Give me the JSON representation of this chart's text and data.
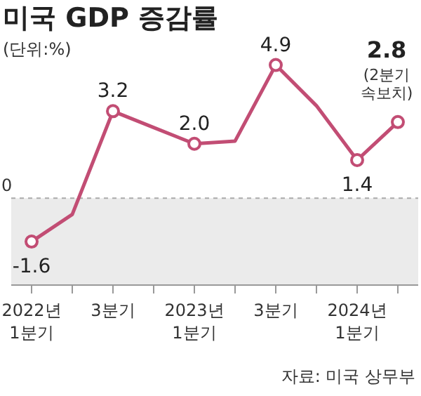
{
  "chart_data": {
    "type": "line",
    "title": "미국 GDP 증감률",
    "categories": [
      "2022년\n1분기",
      null,
      "3분기",
      null,
      "2023년\n1분기",
      null,
      "3분기",
      null,
      "2024년\n1분기",
      null
    ],
    "values": [
      -1.6,
      -0.6,
      3.2,
      2.6,
      2.0,
      2.1,
      4.9,
      3.4,
      1.4,
      2.8
    ],
    "value_labels": [
      "-1.6",
      null,
      "3.2",
      null,
      "2.0",
      null,
      "4.9",
      null,
      "1.4",
      "2.8"
    ],
    "color": "#c24d74",
    "marker": "circle",
    "bands": [
      {
        "axis": "y",
        "from": -3.2,
        "to": 0,
        "color": "#ebebeb"
      }
    ],
    "ref_lines": [
      {
        "axis": "y",
        "value": 0,
        "label": "0",
        "color": "#aaaaaa",
        "line_style": "dashed"
      }
    ],
    "annotations": [
      "(단위:%)",
      "(2분기\n속보치)",
      "자료: 미국 상무부"
    ]
  }
}
